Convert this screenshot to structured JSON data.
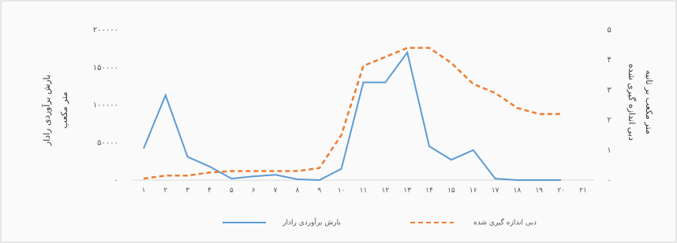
{
  "chart_data": {
    "type": "line",
    "y_label": [
      "بارش برآوردی رادار",
      "متر مکعب"
    ],
    "y2_label": [
      "دبی اندازه گیری شده",
      "متر مکعب بر ثانیه"
    ],
    "categories": [
      "۱",
      "۲",
      "۳",
      "۴",
      "۵",
      "۶",
      "۷",
      "۸",
      "۹",
      "۱۰",
      "۱۱",
      "۱۲",
      "۱۳",
      "۱۴",
      "۱۵",
      "۱۶",
      "۱۷",
      "۱۸",
      "۱۹",
      "۲۰",
      "۲۱"
    ],
    "series": [
      {
        "name": "بارش برآوردی رادار",
        "color": "#5b9bd5",
        "axis": "y",
        "values": [
          42000,
          113000,
          31000,
          18000,
          2000,
          5000,
          7000,
          1000,
          0,
          15000,
          130000,
          130000,
          170000,
          45000,
          27000,
          40000,
          2000,
          0,
          0,
          0,
          null
        ]
      },
      {
        "name": "دبی اندازه گیری شده",
        "color": "#ed7d31",
        "axis": "y2",
        "dash": true,
        "values": [
          0.05,
          0.15,
          0.15,
          0.25,
          0.3,
          0.3,
          0.3,
          0.3,
          0.4,
          1.5,
          3.8,
          4.1,
          4.4,
          4.4,
          3.9,
          3.2,
          2.9,
          2.4,
          2.2,
          2.2,
          null
        ]
      }
    ],
    "ylim": [
      0,
      200000
    ],
    "yticks": [
      {
        "value": 0,
        "label": "۰"
      },
      {
        "value": 50000,
        "label": "۵۰۰۰۰"
      },
      {
        "value": 100000,
        "label": "۱۰۰۰۰۰"
      },
      {
        "value": 150000,
        "label": "۱۵۰۰۰۰"
      },
      {
        "value": 200000,
        "label": "۲۰۰۰۰۰"
      }
    ],
    "y2lim": [
      0,
      5
    ],
    "y2ticks": [
      {
        "value": 0,
        "label": "۰"
      },
      {
        "value": 1,
        "label": "۱"
      },
      {
        "value": 2,
        "label": "۲"
      },
      {
        "value": 3,
        "label": "۳"
      },
      {
        "value": 4,
        "label": "۴"
      },
      {
        "value": 5,
        "label": "۵"
      }
    ]
  }
}
